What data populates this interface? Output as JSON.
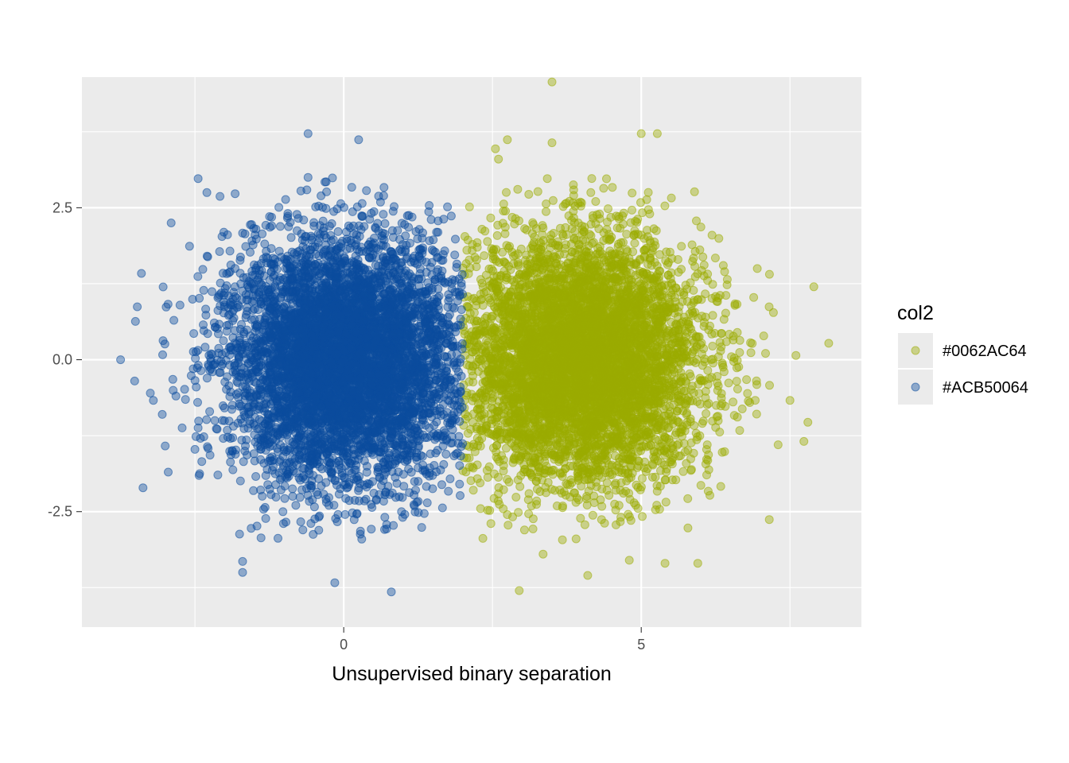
{
  "chart_data": {
    "type": "scatter",
    "xlabel": "Unsupervised binary separation",
    "ylabel": "",
    "xlim": [
      -4.4,
      8.7
    ],
    "ylim": [
      -4.4,
      4.65
    ],
    "x_ticks": [
      0,
      5
    ],
    "x_tick_labels": [
      "0",
      "5"
    ],
    "x_minor_ticks": [
      -2.5,
      2.5,
      7.5
    ],
    "y_ticks": [
      -2.5,
      0.0,
      2.5
    ],
    "y_tick_labels": [
      "-2.5",
      "0.0",
      "2.5"
    ],
    "y_minor_ticks": [
      -3.75,
      -1.25,
      1.25,
      3.75
    ],
    "grid": true,
    "legend": {
      "title": "col2",
      "position": "right"
    },
    "split_x": 2.0,
    "series": [
      {
        "name": "#0062AC64",
        "color": "#9aab00",
        "center": [
          4.0,
          0.0
        ],
        "sd": 1.0,
        "outliers": [
          [
            3.5,
            4.57
          ],
          [
            5.0,
            3.72
          ],
          [
            5.27,
            3.72
          ],
          [
            2.75,
            3.62
          ],
          [
            3.5,
            3.57
          ],
          [
            2.55,
            3.47
          ],
          [
            2.6,
            3.3
          ],
          [
            7.9,
            1.2
          ],
          [
            8.15,
            0.27
          ],
          [
            7.15,
            0.87
          ],
          [
            7.6,
            0.07
          ],
          [
            7.5,
            -0.67
          ],
          [
            7.8,
            -1.03
          ],
          [
            7.3,
            -1.4
          ],
          [
            5.4,
            -3.35
          ],
          [
            5.95,
            -3.35
          ],
          [
            2.95,
            -3.8
          ],
          [
            4.1,
            -3.55
          ],
          [
            3.35,
            -3.2
          ],
          [
            4.8,
            -3.3
          ],
          [
            6.95,
            1.5
          ],
          [
            2.3,
            -2.45
          ]
        ]
      },
      {
        "name": "#ACB50064",
        "color": "#0b4d9e",
        "center": [
          0.0,
          0.0
        ],
        "sd": 1.0,
        "outliers": [
          [
            -3.75,
            0.0
          ],
          [
            -3.5,
            0.63
          ],
          [
            -3.47,
            0.87
          ],
          [
            -3.4,
            1.42
          ],
          [
            -3.2,
            -0.67
          ],
          [
            -3.0,
            -1.42
          ],
          [
            -2.95,
            -1.85
          ],
          [
            -2.9,
            2.25
          ],
          [
            -0.6,
            3.72
          ],
          [
            0.25,
            3.62
          ],
          [
            -0.6,
            3.0
          ],
          [
            -1.75,
            -2.87
          ],
          [
            -1.7,
            -3.32
          ],
          [
            -1.7,
            -3.5
          ],
          [
            -0.15,
            -3.67
          ],
          [
            0.8,
            -3.82
          ],
          [
            -2.3,
            2.75
          ],
          [
            -3.05,
            -0.9
          ],
          [
            -3.25,
            -0.55
          ]
        ]
      }
    ]
  }
}
